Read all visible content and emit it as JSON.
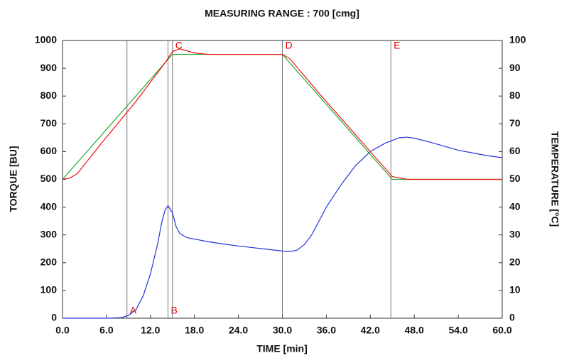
{
  "chart_data": {
    "type": "line",
    "title": "MEASURING RANGE : 700 [cmg]",
    "x_label": "TIME  [min]",
    "y_label": "TORQUE  [BU]",
    "y2_label": "TEMPERATURE  [°C]",
    "y_label_color": "#2222dd",
    "y2_label_color": "#ee1111",
    "xlim": [
      0,
      60
    ],
    "xticks": [
      {
        "value": 0,
        "label": "0.0"
      },
      {
        "value": 6,
        "label": "6.0"
      },
      {
        "value": 12,
        "label": "12.0"
      },
      {
        "value": 18,
        "label": "18.0"
      },
      {
        "value": 24,
        "label": "24.0"
      },
      {
        "value": 30,
        "label": "30.0"
      },
      {
        "value": 36,
        "label": "36.0"
      },
      {
        "value": 42,
        "label": "42.0"
      },
      {
        "value": 48,
        "label": "48.0"
      },
      {
        "value": 54,
        "label": "54.0"
      },
      {
        "value": 60,
        "label": "60.0"
      }
    ],
    "ylim": [
      0,
      1000
    ],
    "yticks": [
      0,
      100,
      200,
      300,
      400,
      500,
      600,
      700,
      800,
      900,
      1000
    ],
    "y2lim": [
      0,
      100
    ],
    "y2ticks": [
      0,
      10,
      20,
      30,
      40,
      50,
      60,
      70,
      80,
      90,
      100
    ],
    "grid": false,
    "series": [
      {
        "color": "#2233dd",
        "axis": "y",
        "x": [
          0,
          2,
          4,
          6,
          8,
          9,
          10,
          11,
          12,
          13,
          13.5,
          14,
          14.4,
          15,
          15.5,
          16,
          17,
          18,
          20,
          22,
          24,
          26,
          28,
          30,
          31,
          32,
          33,
          34,
          35,
          36,
          38,
          40,
          42,
          44,
          46,
          47,
          48,
          50,
          52,
          54,
          56,
          58,
          60
        ],
        "values": [
          0,
          0,
          0,
          0,
          2,
          10,
          30,
          80,
          160,
          270,
          340,
          390,
          405,
          380,
          330,
          305,
          290,
          285,
          275,
          267,
          260,
          254,
          248,
          242,
          240,
          245,
          265,
          300,
          350,
          400,
          480,
          550,
          600,
          630,
          650,
          652,
          648,
          635,
          620,
          605,
          595,
          585,
          578
        ]
      },
      {
        "color": "#22aa33",
        "axis": "y2",
        "x": [
          0,
          15,
          30,
          45,
          60
        ],
        "values": [
          50,
          95,
          95,
          50,
          50
        ]
      },
      {
        "color": "#ee1111",
        "axis": "y2",
        "x": [
          0,
          1,
          2,
          5,
          10,
          14,
          15,
          16,
          18,
          20,
          25,
          30,
          31,
          35,
          40,
          43,
          45,
          47,
          60
        ],
        "values": [
          50,
          50.5,
          52,
          62,
          78,
          92,
          96,
          97,
          95.5,
          95,
          95,
          95,
          93.5,
          81,
          66,
          57,
          51,
          50,
          50
        ]
      }
    ],
    "annotations": [
      {
        "label": "A",
        "x": 8.8,
        "position": "bottom"
      },
      {
        "label": "B",
        "x": 14.4,
        "position": "bottom"
      },
      {
        "label": "C",
        "x": 15,
        "position": "top"
      },
      {
        "label": "D",
        "x": 30,
        "position": "top"
      },
      {
        "label": "E",
        "x": 44.8,
        "position": "top"
      }
    ]
  }
}
